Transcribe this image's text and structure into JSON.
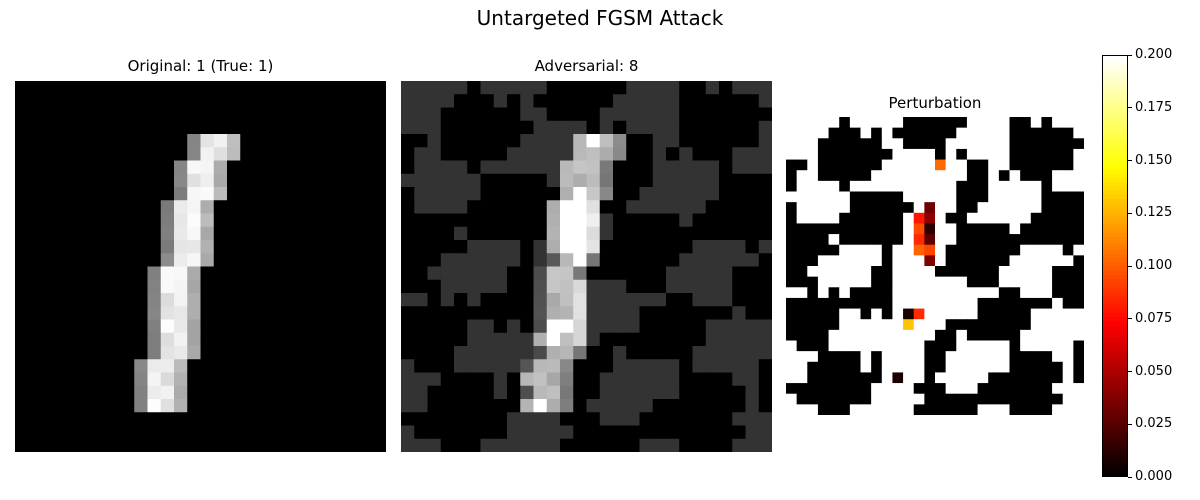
{
  "figure": {
    "title": "Untargeted FGSM Attack"
  },
  "chart_data": [
    {
      "type": "heatmap",
      "title": "Original: 1 (True: 1)",
      "colormap": "gray",
      "grid": false,
      "axes_visible": false,
      "size": 28,
      "stroke": [
        [
          4,
          14
        ],
        [
          5,
          14
        ],
        [
          6,
          13
        ],
        [
          7,
          13
        ],
        [
          8,
          13
        ],
        [
          9,
          12
        ],
        [
          10,
          12
        ],
        [
          11,
          12
        ],
        [
          12,
          12
        ],
        [
          13,
          12
        ],
        [
          14,
          11
        ],
        [
          15,
          11
        ],
        [
          16,
          11
        ],
        [
          17,
          11
        ],
        [
          18,
          11
        ],
        [
          19,
          11
        ],
        [
          20,
          11
        ],
        [
          21,
          10
        ],
        [
          22,
          10
        ],
        [
          23,
          10
        ],
        [
          24,
          10
        ]
      ],
      "stroke_width_px": 2,
      "max_value": 1.0
    },
    {
      "type": "heatmap",
      "title": "Adversarial: 8",
      "colormap": "gray",
      "grid": false,
      "axes_visible": false,
      "size": 28,
      "perturbation_level": 0.2,
      "predicted_label": "8"
    },
    {
      "type": "heatmap",
      "title": "Perturbation",
      "colormap": "hot",
      "grid": false,
      "axes_visible": false,
      "size": 28,
      "colorbar": {
        "vmin": 0.0,
        "vmax": 0.2,
        "ticks": [
          "0.000",
          "0.025",
          "0.050",
          "0.075",
          "0.100",
          "0.125",
          "0.150",
          "0.175",
          "0.200"
        ],
        "placement": "right"
      }
    }
  ]
}
